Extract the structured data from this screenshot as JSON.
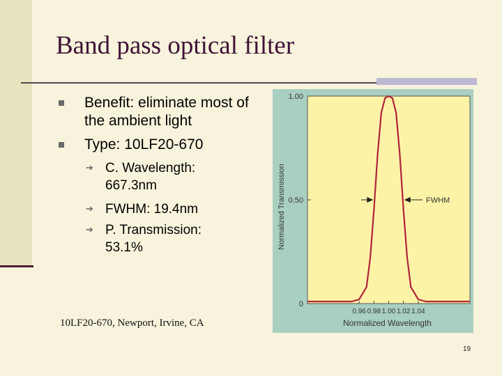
{
  "slide": {
    "title": "Band pass optical filter",
    "bullets": [
      {
        "text": "Benefit: eliminate most of the ambient light"
      },
      {
        "text": "Type: 10LF20-670"
      }
    ],
    "sub_bullets": [
      {
        "text": "C. Wavelength: 667.3nm"
      },
      {
        "text": "FWHM: 19.4nm"
      },
      {
        "text": "P. Transmission: 53.1%"
      }
    ],
    "caption": "10LF20-670, Newport, Irvine, CA",
    "page_number": "19"
  },
  "colors": {
    "title": "#3f1238",
    "chart_frame": "#a8cfc0",
    "plot_bg": "#fdf3a6",
    "curve": "#b0243c"
  },
  "chart_data": {
    "type": "line",
    "title": "",
    "xlabel": "Normalized Wavelength",
    "ylabel": "Normalized Transmission",
    "xlim": [
      0.89,
      1.11
    ],
    "ylim": [
      0,
      1.0
    ],
    "x_tick_labels": [
      "0.96",
      "0.98",
      "1.00",
      "1.02",
      "1.04"
    ],
    "x_ticks": [
      0.96,
      0.98,
      1.0,
      1.02,
      1.04
    ],
    "y_tick_labels": [
      "0",
      "0.50",
      "1.00"
    ],
    "y_ticks": [
      0,
      0.5,
      1.0
    ],
    "series": [
      {
        "x": [
          0.89,
          0.95,
          0.96,
          0.97,
          0.975,
          0.98,
          0.985,
          0.99,
          0.995,
          1.0,
          1.005,
          1.01,
          1.015,
          1.02,
          1.025,
          1.03,
          1.04,
          1.05,
          1.11
        ],
        "values": [
          0.01,
          0.01,
          0.02,
          0.08,
          0.22,
          0.45,
          0.72,
          0.92,
          0.99,
          1.0,
          0.99,
          0.92,
          0.72,
          0.45,
          0.22,
          0.08,
          0.02,
          0.01,
          0.01
        ]
      }
    ],
    "annotation": {
      "label": "FWHM",
      "y": 0.5,
      "x_left": 0.98,
      "x_right": 1.02
    }
  }
}
